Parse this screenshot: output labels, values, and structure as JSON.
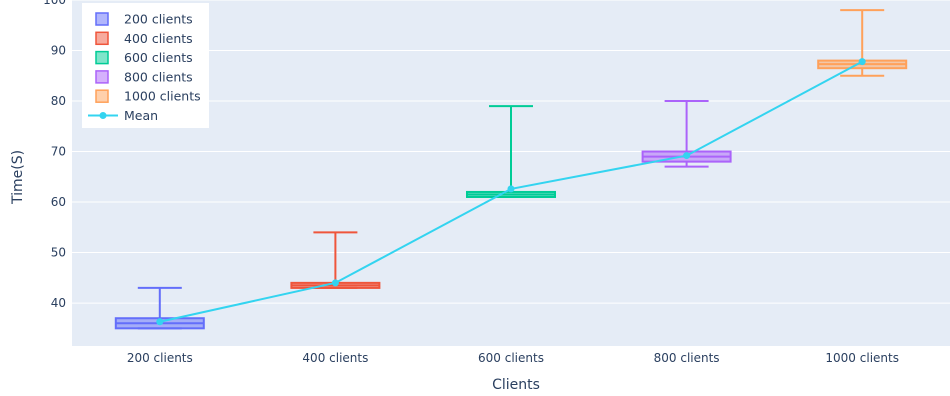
{
  "chart_data": {
    "type": "box",
    "xlabel": "Clients",
    "ylabel": "Time(S)",
    "ylim": [
      31.5,
      100
    ],
    "yticks": [
      40,
      50,
      60,
      70,
      80,
      90,
      100
    ],
    "grid": true,
    "legend_position": "top-left",
    "categories": [
      "200 clients",
      "400 clients",
      "600 clients",
      "800 clients",
      "1000 clients"
    ],
    "boxes": [
      {
        "name": "200 clients",
        "min": 35,
        "q1": 35,
        "median": 36,
        "q3": 37,
        "max": 43,
        "color": "#636efa"
      },
      {
        "name": "400 clients",
        "min": 43,
        "q1": 43,
        "median": 43.5,
        "q3": 44,
        "max": 54,
        "color": "#ef553b"
      },
      {
        "name": "600 clients",
        "min": 61,
        "q1": 61,
        "median": 61.5,
        "q3": 62,
        "max": 79,
        "color": "#00cc96"
      },
      {
        "name": "800 clients",
        "min": 67,
        "q1": 68,
        "median": 69,
        "q3": 70,
        "max": 80,
        "color": "#ab63fa"
      },
      {
        "name": "1000 clients",
        "min": 85,
        "q1": 86.5,
        "median": 87.3,
        "q3": 88,
        "max": 98,
        "color": "#ffa15a"
      }
    ],
    "mean_series": {
      "name": "Mean",
      "color": "#33d4f0",
      "values": [
        36.3,
        44,
        62.6,
        69.2,
        87.8
      ]
    }
  }
}
